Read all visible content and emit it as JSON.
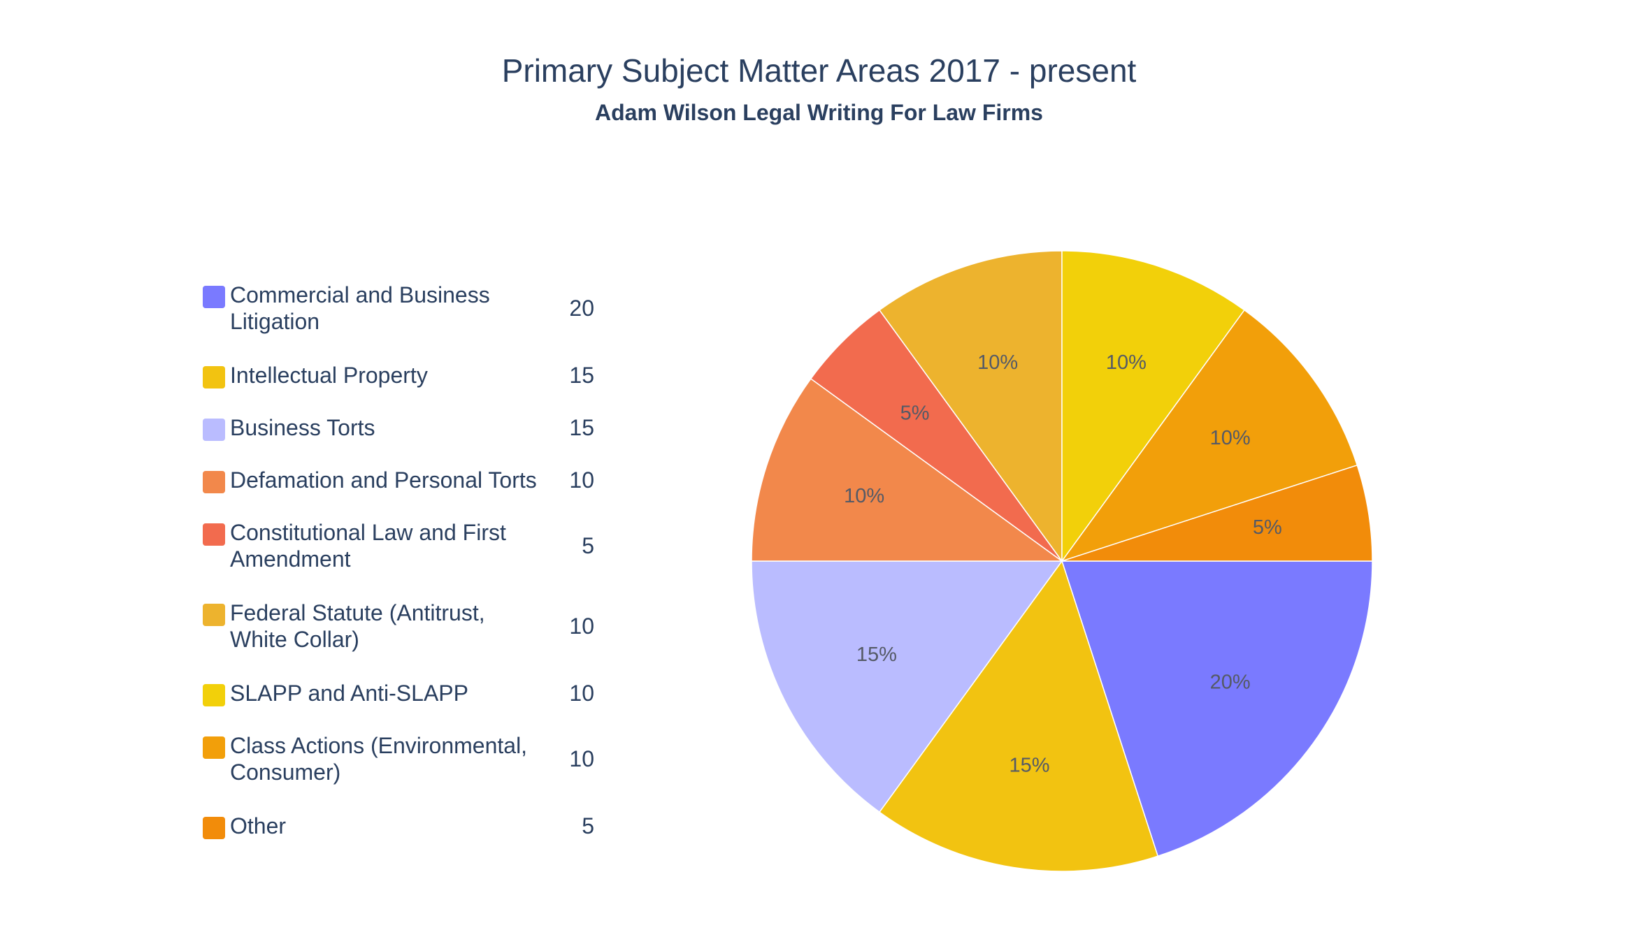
{
  "chart_data": {
    "type": "pie",
    "title": "Primary Subject Matter Areas 2017 - present",
    "subtitle": "Adam Wilson Legal Writing For Law Firms",
    "legend_position": "left",
    "slices": [
      {
        "label": "Commercial and Business\nLitigation",
        "value": 20,
        "percent_label": "20%",
        "color": "#7a7aff"
      },
      {
        "label": "Intellectual Property",
        "value": 15,
        "percent_label": "15%",
        "color": "#f2c311"
      },
      {
        "label": "Business Torts",
        "value": 15,
        "percent_label": "15%",
        "color": "#babcff"
      },
      {
        "label": "Defamation and Personal Torts",
        "value": 10,
        "percent_label": "10%",
        "color": "#f2884b"
      },
      {
        "label": "Constitutional Law and First\nAmendment",
        "value": 5,
        "percent_label": "5%",
        "color": "#f26b4e"
      },
      {
        "label": "Federal Statute (Antitrust,\nWhite Collar)",
        "value": 10,
        "percent_label": "10%",
        "color": "#edb32e"
      },
      {
        "label": "SLAPP and Anti-SLAPP",
        "value": 10,
        "percent_label": "10%",
        "color": "#f2d00a"
      },
      {
        "label": "Class Actions (Environmental,\nConsumer)",
        "value": 10,
        "percent_label": "10%",
        "color": "#f29f0a"
      },
      {
        "label": "Other",
        "value": 5,
        "percent_label": "5%",
        "color": "#f28c0a"
      }
    ]
  }
}
